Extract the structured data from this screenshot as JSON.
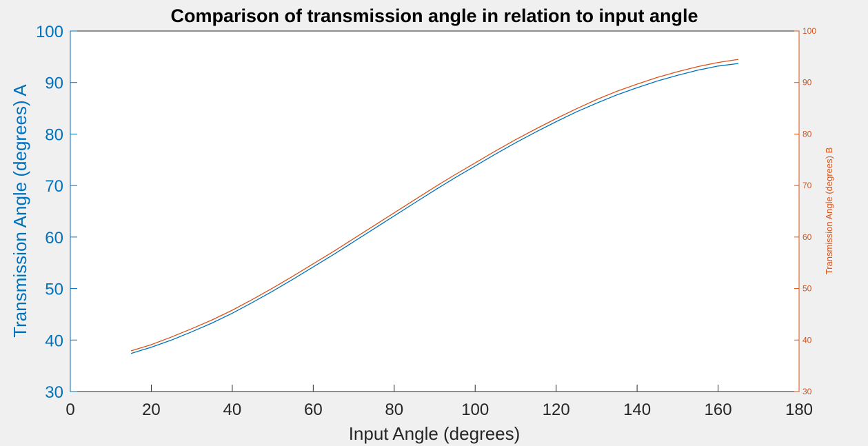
{
  "chart_data": {
    "type": "line",
    "title": "Comparison of transmission angle in relation to input angle",
    "xlabel": "Input Angle (degrees)",
    "ylabel_left": "Transmission Angle (degrees) A",
    "ylabel_right": "Transmission Angle (degrees) B",
    "xlim": [
      0,
      180
    ],
    "ylim_left": [
      30,
      100
    ],
    "ylim_right": [
      30,
      100
    ],
    "x_ticks": [
      "0",
      "20",
      "40",
      "60",
      "80",
      "100",
      "120",
      "140",
      "160",
      "180"
    ],
    "y_ticks_left": [
      "30",
      "40",
      "50",
      "60",
      "70",
      "80",
      "90",
      "100"
    ],
    "y_ticks_right": [
      "30",
      "40",
      "50",
      "60",
      "70",
      "80",
      "90",
      "100"
    ],
    "grid": false,
    "colors": {
      "left_axis": "#0072BD",
      "right_axis": "#D95319",
      "axis": "#262626",
      "background": "#F0F0F0",
      "plot_area": "#FFFFFF"
    },
    "series": [
      {
        "axis": "left",
        "color": "#0072BD",
        "x": [
          15,
          20,
          25,
          30,
          35,
          40,
          45,
          50,
          55,
          60,
          65,
          70,
          75,
          80,
          85,
          90,
          95,
          100,
          105,
          110,
          115,
          120,
          125,
          130,
          135,
          140,
          145,
          150,
          155,
          160,
          165
        ],
        "y": [
          37.4,
          38.6,
          40.0,
          41.6,
          43.3,
          45.2,
          47.3,
          49.5,
          51.8,
          54.2,
          56.6,
          59.1,
          61.6,
          64.1,
          66.6,
          69.1,
          71.5,
          73.8,
          76.1,
          78.3,
          80.4,
          82.4,
          84.3,
          86.0,
          87.6,
          89.0,
          90.3,
          91.4,
          92.4,
          93.2,
          93.7
        ]
      },
      {
        "axis": "right",
        "color": "#D95319",
        "x": [
          15,
          20,
          25,
          30,
          35,
          40,
          45,
          50,
          55,
          60,
          65,
          70,
          75,
          80,
          85,
          90,
          95,
          100,
          105,
          110,
          115,
          120,
          125,
          130,
          135,
          140,
          145,
          150,
          155,
          160,
          165
        ],
        "y": [
          37.9,
          39.1,
          40.6,
          42.2,
          43.9,
          45.8,
          47.9,
          50.1,
          52.4,
          54.8,
          57.2,
          59.7,
          62.2,
          64.7,
          67.2,
          69.7,
          72.1,
          74.4,
          76.7,
          78.9,
          81.0,
          83.0,
          84.9,
          86.7,
          88.3,
          89.7,
          91.0,
          92.1,
          93.1,
          93.9,
          94.5
        ]
      }
    ]
  }
}
